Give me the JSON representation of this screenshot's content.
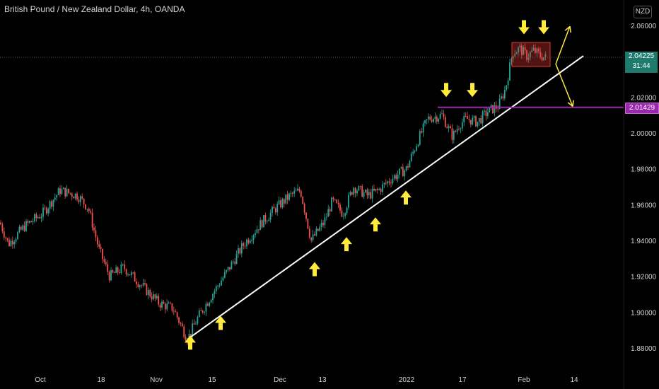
{
  "header": {
    "title": "British Pound / New Zealand Dollar, 4h, OANDA",
    "currency": "NZD"
  },
  "price_tags": {
    "current_price": "2.04225",
    "countdown": "31:44",
    "resistance": "2.01429"
  },
  "colors": {
    "background": "#000000",
    "up_candle": "#26a69a",
    "down_candle": "#ef5350",
    "trendline": "#ffffff",
    "resistance_line": "#9c27b0",
    "arrows": "#ffeb3b",
    "range_box": "#e53935",
    "current_price_tag": "#1f7a6e"
  },
  "chart_data": {
    "type": "candlestick",
    "x_ticks": [
      "Oct",
      "18",
      "Nov",
      "15",
      "Dec",
      "13",
      "2022",
      "17",
      "Feb",
      "14"
    ],
    "y_ticks": [
      "2.06000",
      "2.04000",
      "2.02000",
      "2.00000",
      "1.98000",
      "1.96000",
      "1.94000",
      "1.92000",
      "1.90000",
      "1.88000"
    ],
    "ylim": [
      1.8745,
      2.0705
    ],
    "price_path": [
      [
        0,
        1.95
      ],
      [
        12,
        1.938
      ],
      [
        35,
        1.948
      ],
      [
        60,
        1.955
      ],
      [
        85,
        1.968
      ],
      [
        110,
        1.965
      ],
      [
        125,
        1.958
      ],
      [
        140,
        1.935
      ],
      [
        155,
        1.92
      ],
      [
        175,
        1.925
      ],
      [
        200,
        1.915
      ],
      [
        225,
        1.905
      ],
      [
        245,
        1.902
      ],
      [
        265,
        1.885
      ],
      [
        280,
        1.897
      ],
      [
        300,
        1.91
      ],
      [
        320,
        1.922
      ],
      [
        345,
        1.938
      ],
      [
        370,
        1.95
      ],
      [
        390,
        1.958
      ],
      [
        410,
        1.965
      ],
      [
        425,
        1.968
      ],
      [
        440,
        1.94
      ],
      [
        458,
        1.95
      ],
      [
        470,
        1.962
      ],
      [
        485,
        1.955
      ],
      [
        500,
        1.97
      ],
      [
        520,
        1.965
      ],
      [
        535,
        1.968
      ],
      [
        555,
        1.975
      ],
      [
        575,
        1.98
      ],
      [
        590,
        1.995
      ],
      [
        605,
        2.008
      ],
      [
        625,
        2.01
      ],
      [
        640,
        1.998
      ],
      [
        650,
        2.005
      ],
      [
        660,
        2.008
      ],
      [
        675,
        2.006
      ],
      [
        690,
        2.012
      ],
      [
        705,
        2.015
      ],
      [
        715,
        2.025
      ],
      [
        725,
        2.045
      ],
      [
        735,
        2.047
      ],
      [
        745,
        2.043
      ],
      [
        755,
        2.046
      ],
      [
        765,
        2.043
      ],
      [
        772,
        2.042
      ]
    ],
    "trendline": {
      "x": [
        265,
        825
      ],
      "y": [
        1.8848,
        2.043
      ]
    },
    "resistance_level": 2.01429,
    "current_price": 2.04225,
    "range_box": {
      "x": [
        724,
        778
      ],
      "y": [
        2.0371,
        2.0505
      ]
    },
    "arrows_down": [
      [
        631,
        2.024
      ],
      [
        668,
        2.024
      ],
      [
        741,
        2.059
      ],
      [
        769,
        2.059
      ]
    ],
    "arrows_up": [
      [
        269,
        1.883
      ],
      [
        312,
        1.894
      ],
      [
        445,
        1.924
      ],
      [
        490,
        1.938
      ],
      [
        531,
        1.949
      ],
      [
        574,
        1.964
      ]
    ],
    "projection_arrows": [
      {
        "from": [
          786,
          2.0385
        ],
        "to": [
          806,
          2.0595
        ]
      },
      {
        "from": [
          786,
          2.0385
        ],
        "to": [
          810,
          2.0148
        ]
      }
    ]
  }
}
